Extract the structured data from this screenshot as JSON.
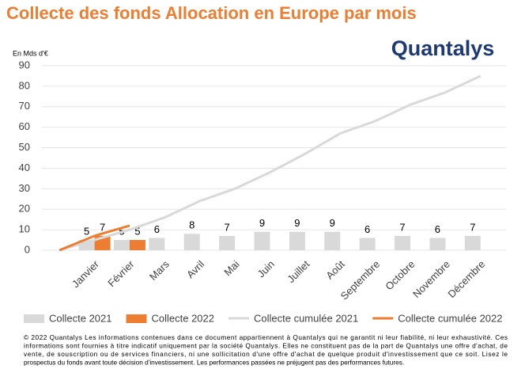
{
  "chart_data": {
    "type": "bar_line",
    "title": "Collecte des fonds Allocation en Europe par mois",
    "logo": "Quantalys",
    "y_label": "En Mds d'€",
    "categories": [
      null,
      "Janvier",
      "Février",
      "Mars",
      "Avril",
      "Mai",
      "Juin",
      "Juillet",
      "Août",
      "Septembre",
      "Octobre",
      "Novembre",
      "Décembre"
    ],
    "series": [
      {
        "name": "Collecte 2021",
        "kind": "bar",
        "color": "#d9d9d9",
        "values": [
          null,
          5,
          5,
          6,
          8,
          7,
          9,
          9,
          9,
          6,
          7,
          6,
          7
        ]
      },
      {
        "name": "Collecte 2022",
        "kind": "bar",
        "color": "#ed7d31",
        "values": [
          null,
          7,
          5,
          null,
          null,
          null,
          null,
          null,
          null,
          null,
          null,
          null,
          null
        ]
      },
      {
        "name": "Collecte cumulée 2021",
        "kind": "line",
        "color": "#d9d9d9",
        "values": [
          0,
          5,
          10,
          16,
          24,
          30,
          38,
          47,
          57,
          63,
          71,
          77,
          85
        ]
      },
      {
        "name": "Collecte cumulée 2022",
        "kind": "line",
        "color": "#ed7d31",
        "values": [
          0,
          7,
          12,
          null,
          null,
          null,
          null,
          null,
          null,
          null,
          null,
          null,
          null
        ]
      }
    ],
    "ylim": [
      0,
      90
    ],
    "yticks": [
      0,
      10,
      20,
      30,
      40,
      50,
      60,
      70,
      80,
      90
    ],
    "grid": true,
    "footnote": [
      "© 2022 Quantalys Les informations contenues dans ce document appartiennent à Quantalys qui ne garantit ni leur fiabilité, ni leur exhaustivité. Ces",
      "informations sont fournies à titre indicatif uniquement par la société Quantalys. Elles ne constituent pas de la part de Quantalys une offre d'achat, de",
      "vente, de souscription ou de services financiers, ni une sollicitation d'une offre d'achat de quelque produit d'investissement que ce soit. Lisez le",
      "prospectus du fonds avant toute décision d'investissement. Les performances passées ne préjugent pas des performances futures."
    ]
  }
}
